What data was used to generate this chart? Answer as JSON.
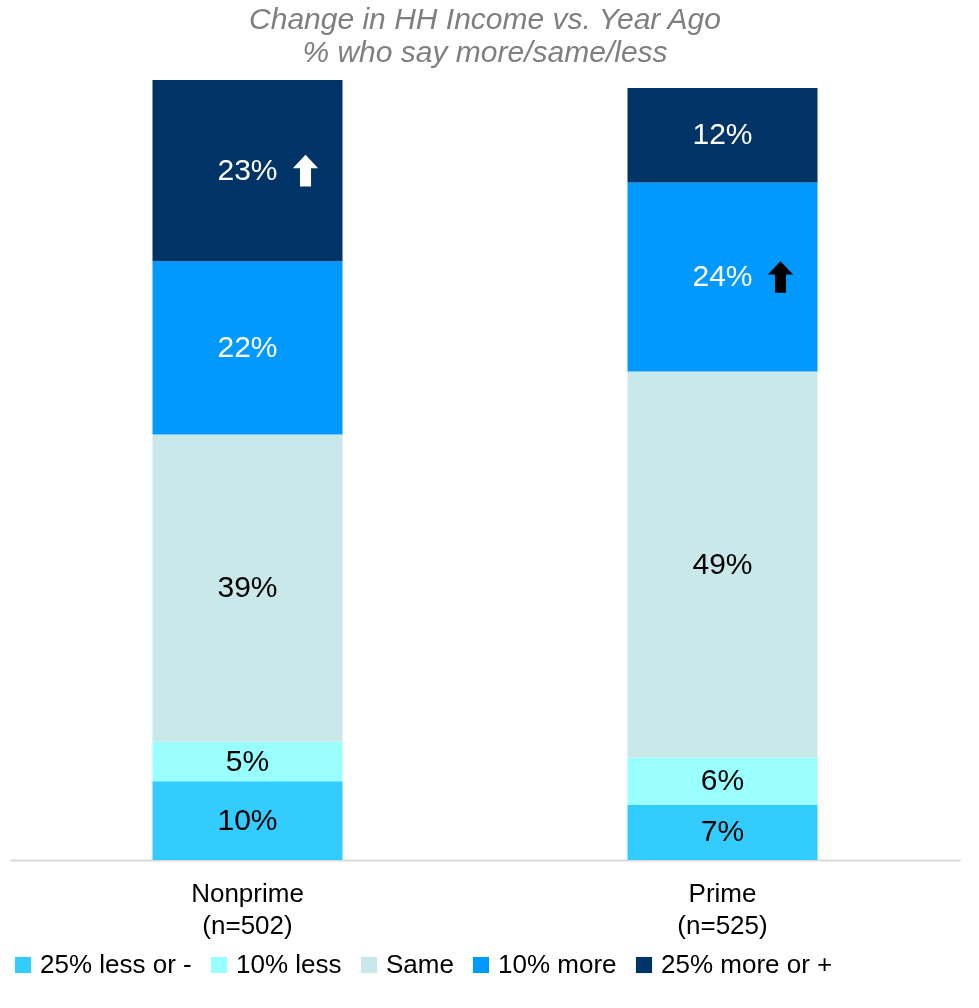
{
  "chart_data": {
    "type": "bar",
    "stacked": true,
    "title": "Change in HH Income vs. Year Ago",
    "subtitle": "% who say more/same/less",
    "categories": [
      "Nonprime (n=502)",
      "Prime (n=525)"
    ],
    "series": [
      {
        "name": "25% less or -",
        "color": "#33ccff",
        "values": [
          10,
          7
        ],
        "value_labels": [
          "10%",
          "7%"
        ]
      },
      {
        "name": "10% less",
        "color": "#99ffff",
        "values": [
          5,
          6
        ],
        "value_labels": [
          "5%",
          "6%"
        ]
      },
      {
        "name": "Same",
        "color": "#c9e8ea",
        "values": [
          39,
          49
        ],
        "value_labels": [
          "39%",
          "49%"
        ]
      },
      {
        "name": "10% more",
        "color": "#0099ff",
        "values": [
          22,
          24
        ],
        "value_labels": [
          "22%",
          "24%"
        ]
      },
      {
        "name": "25% more or +",
        "color": "#003366",
        "values": [
          23,
          12
        ],
        "value_labels": [
          "23%",
          "12%"
        ]
      }
    ],
    "legend": "bottom"
  }
}
